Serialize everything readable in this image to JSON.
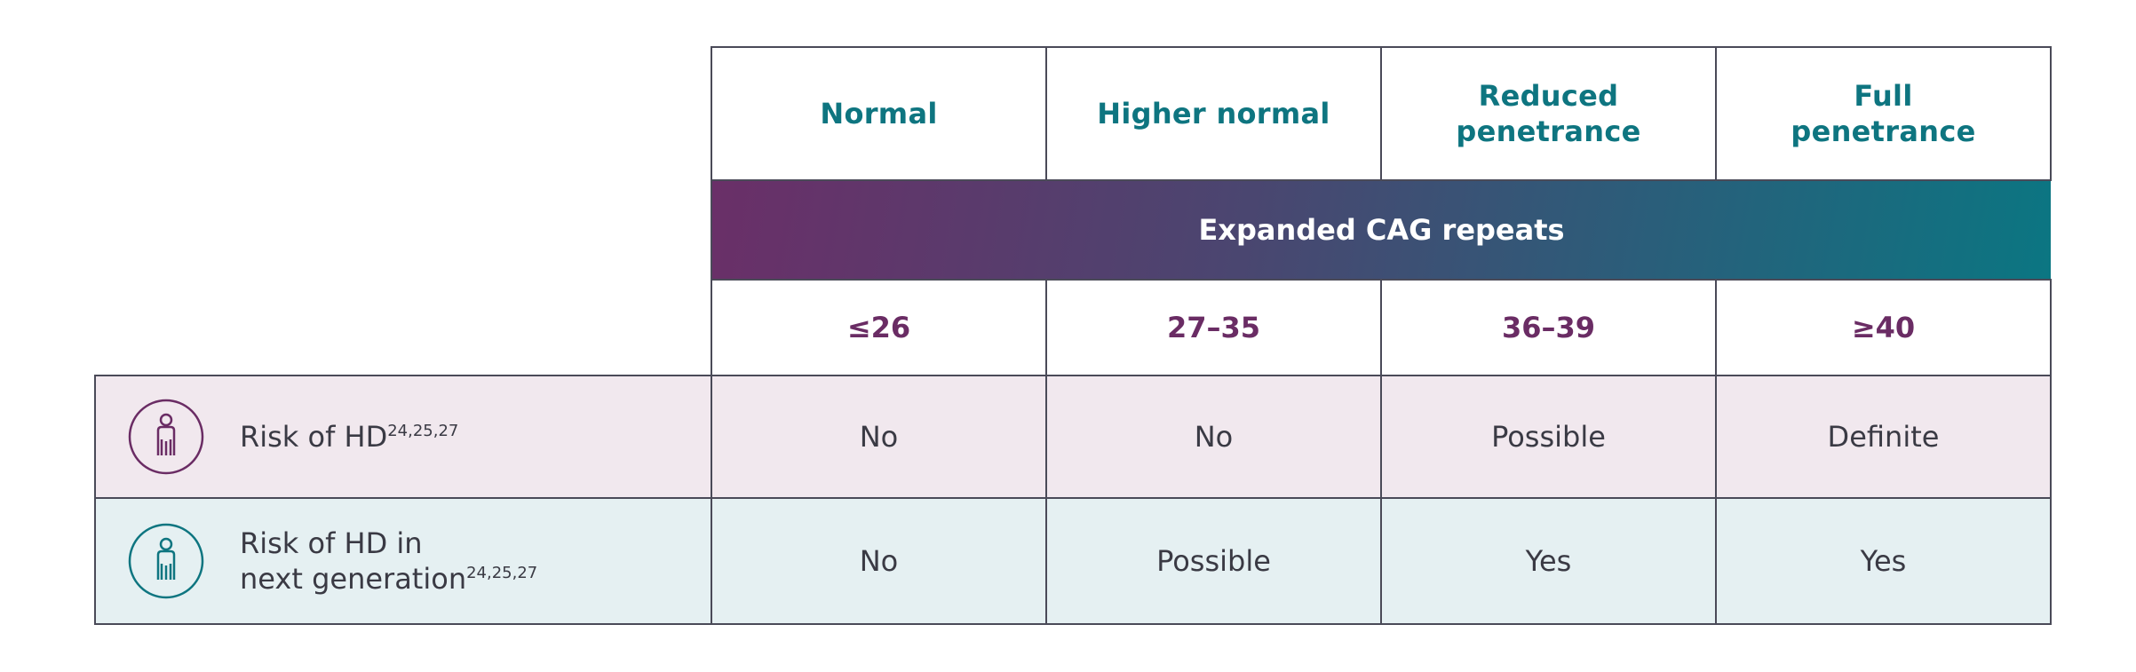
{
  "columns": [
    {
      "header_line1": "Normal",
      "header_line2": "",
      "range": "≤26"
    },
    {
      "header_line1": "Higher normal",
      "header_line2": "",
      "range": "27–35"
    },
    {
      "header_line1": "Reduced",
      "header_line2": "penetrance",
      "range": "36–39"
    },
    {
      "header_line1": "Full",
      "header_line2": "penetrance",
      "range": "≥40"
    }
  ],
  "band_label": "Expanded CAG repeats",
  "rows": [
    {
      "icon": "person-icon",
      "icon_color": "#6a2c64",
      "label_line1": "Risk of HD",
      "label_line2": "",
      "refs": "24,25,27",
      "values": [
        "No",
        "No",
        "Possible",
        "Definite"
      ]
    },
    {
      "icon": "person-icon",
      "icon_color": "#0e7580",
      "label_line1": "Risk of HD in",
      "label_line2": "next generation",
      "refs": "24,25,27",
      "values": [
        "No",
        "Possible",
        "Yes",
        "Yes"
      ]
    }
  ],
  "colors": {
    "header_text": "#0e7580",
    "range_text": "#6a2c64",
    "band_start": "#6a2f68",
    "band_end": "#0b7682",
    "row1_bg": "#f1e8ee",
    "row2_bg": "#e5f0f2",
    "border": "#4a4a58"
  }
}
